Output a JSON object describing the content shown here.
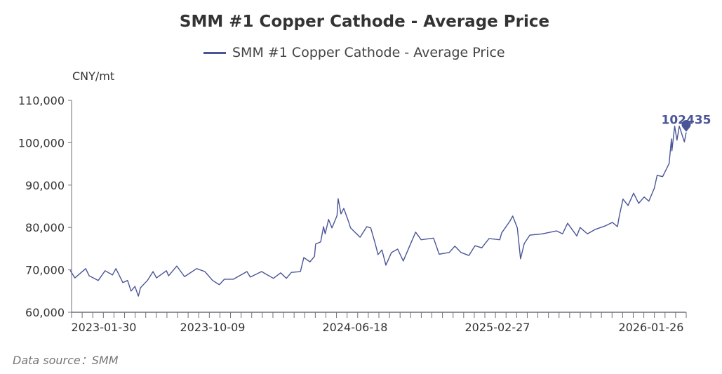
{
  "chart_data": {
    "type": "line",
    "title": "SMM #1 Copper Cathode - Average Price",
    "ylabel": "CNY/mt",
    "xlabel": "",
    "ylim": [
      60000,
      110000
    ],
    "yticks": [
      "60,000",
      "70,000",
      "80,000",
      "90,000",
      "100,000",
      "110,000"
    ],
    "ytick_values": [
      60000,
      70000,
      80000,
      90000,
      100000,
      110000
    ],
    "xticks": [
      "2023-01-30",
      "2023-10-09",
      "2024-06-18",
      "2025-02-27",
      "2026-01-26"
    ],
    "grid": false,
    "legend": "top-center",
    "series": [
      {
        "name": "SMM #1 Copper Cathode - Average Price",
        "color": "#4a5597",
        "points": [
          [
            "2022-11-13",
            69900
          ],
          [
            "2022-11-24",
            68100
          ],
          [
            "2022-12-19",
            70300
          ],
          [
            "2022-12-27",
            68600
          ],
          [
            "2023-01-17",
            67500
          ],
          [
            "2023-02-02",
            69800
          ],
          [
            "2023-02-19",
            68800
          ],
          [
            "2023-02-27",
            70300
          ],
          [
            "2023-03-15",
            67000
          ],
          [
            "2023-03-26",
            67500
          ],
          [
            "2023-04-03",
            65000
          ],
          [
            "2023-04-12",
            66100
          ],
          [
            "2023-04-20",
            63800
          ],
          [
            "2023-04-25",
            65800
          ],
          [
            "2023-05-11",
            67500
          ],
          [
            "2023-05-24",
            69600
          ],
          [
            "2023-06-01",
            68100
          ],
          [
            "2023-06-24",
            69800
          ],
          [
            "2023-06-29",
            68600
          ],
          [
            "2023-07-18",
            70900
          ],
          [
            "2023-08-05",
            68400
          ],
          [
            "2023-09-02",
            70300
          ],
          [
            "2023-09-21",
            69600
          ],
          [
            "2023-10-09",
            67500
          ],
          [
            "2023-10-21",
            66500
          ],
          [
            "2023-10-30",
            67800
          ],
          [
            "2023-11-15",
            67800
          ],
          [
            "2023-12-09",
            69600
          ],
          [
            "2023-12-15",
            68300
          ],
          [
            "2024-01-04",
            69600
          ],
          [
            "2024-01-25",
            68000
          ],
          [
            "2024-02-07",
            69300
          ],
          [
            "2024-02-17",
            68000
          ],
          [
            "2024-02-26",
            69400
          ],
          [
            "2024-03-13",
            69600
          ],
          [
            "2024-03-19",
            72900
          ],
          [
            "2024-03-30",
            71900
          ],
          [
            "2024-04-07",
            73200
          ],
          [
            "2024-04-09",
            76100
          ],
          [
            "2024-04-18",
            76600
          ],
          [
            "2024-04-23",
            80200
          ],
          [
            "2024-04-26",
            78500
          ],
          [
            "2024-05-02",
            81900
          ],
          [
            "2024-05-08",
            79900
          ],
          [
            "2024-05-17",
            82800
          ],
          [
            "2024-05-19",
            86800
          ],
          [
            "2024-05-24",
            83200
          ],
          [
            "2024-05-29",
            84500
          ],
          [
            "2024-06-07",
            81200
          ],
          [
            "2024-06-10",
            79900
          ],
          [
            "2024-06-27",
            77700
          ],
          [
            "2024-07-09",
            80200
          ],
          [
            "2024-07-16",
            79900
          ],
          [
            "2024-07-24",
            76200
          ],
          [
            "2024-07-29",
            73600
          ],
          [
            "2024-08-05",
            74700
          ],
          [
            "2024-08-12",
            71100
          ],
          [
            "2024-08-22",
            74100
          ],
          [
            "2024-09-02",
            74900
          ],
          [
            "2024-09-12",
            72100
          ],
          [
            "2024-09-22",
            75200
          ],
          [
            "2024-10-04",
            78900
          ],
          [
            "2024-10-14",
            77100
          ],
          [
            "2024-11-05",
            77500
          ],
          [
            "2024-11-15",
            73700
          ],
          [
            "2024-12-03",
            74100
          ],
          [
            "2024-12-13",
            75600
          ],
          [
            "2024-12-24",
            74100
          ],
          [
            "2025-01-07",
            73400
          ],
          [
            "2025-01-18",
            75700
          ],
          [
            "2025-01-30",
            75200
          ],
          [
            "2025-02-12",
            77400
          ],
          [
            "2025-03-04",
            77100
          ],
          [
            "2025-03-08",
            78700
          ],
          [
            "2025-03-26",
            81500
          ],
          [
            "2025-04-01",
            82700
          ],
          [
            "2025-04-11",
            79900
          ],
          [
            "2025-04-18",
            72600
          ],
          [
            "2025-04-26",
            76200
          ],
          [
            "2025-05-08",
            78200
          ],
          [
            "2025-06-04",
            78500
          ],
          [
            "2025-07-05",
            79200
          ],
          [
            "2025-07-18",
            78500
          ],
          [
            "2025-07-29",
            81000
          ],
          [
            "2025-08-18",
            78000
          ],
          [
            "2025-08-25",
            80000
          ],
          [
            "2025-09-10",
            78500
          ],
          [
            "2025-09-26",
            79500
          ],
          [
            "2025-10-19",
            80400
          ],
          [
            "2025-11-03",
            81200
          ],
          [
            "2025-11-14",
            80200
          ],
          [
            "2025-11-18",
            82700
          ],
          [
            "2025-11-26",
            86700
          ],
          [
            "2025-12-07",
            85200
          ],
          [
            "2025-12-19",
            88100
          ],
          [
            "2025-12-30",
            85700
          ],
          [
            "2026-01-11",
            87200
          ],
          [
            "2026-01-21",
            86200
          ],
          [
            "2026-02-02",
            89300
          ],
          [
            "2026-02-08",
            92300
          ],
          [
            "2026-02-20",
            92000
          ],
          [
            "2026-03-06",
            95100
          ],
          [
            "2026-03-11",
            100900
          ],
          [
            "2026-03-12",
            98100
          ],
          [
            "2026-03-18",
            103900
          ],
          [
            "2026-03-23",
            100600
          ],
          [
            "2026-03-28",
            103900
          ],
          [
            "2026-04-08",
            100200
          ],
          [
            "2026-04-12",
            102435
          ]
        ],
        "last_value_label": "102435"
      }
    ],
    "source": "Data source：SMM"
  }
}
